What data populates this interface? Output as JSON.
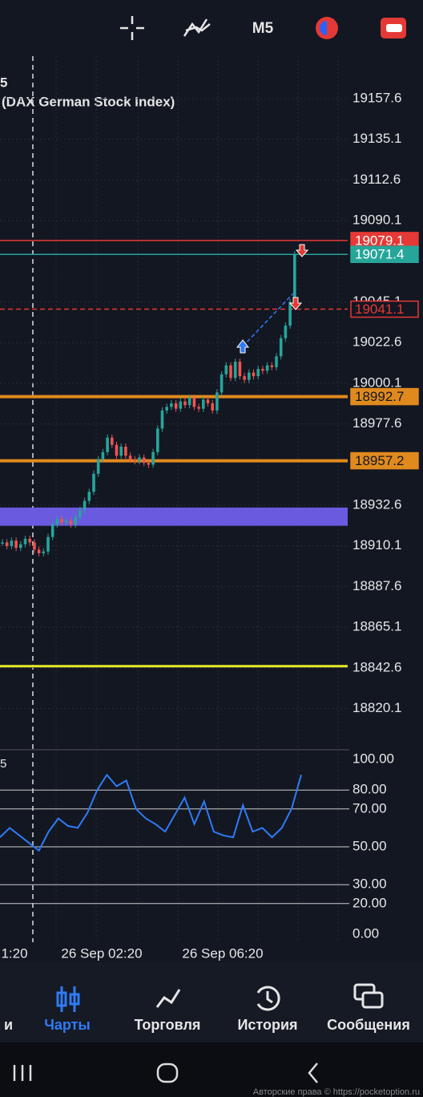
{
  "toolbar": {
    "timeframe": "M5"
  },
  "header": {
    "line1": "5",
    "line2": "(DAX German Stock Index)"
  },
  "price": {
    "ticks": [
      19157.6,
      19135.1,
      19112.6,
      19090.1,
      19045.1,
      19022.6,
      19000.1,
      18977.6,
      18932.6,
      18910.1,
      18887.6,
      18865.1,
      18842.6,
      18820.1
    ],
    "levels": [
      {
        "value": 19079.1,
        "color": "#e53935",
        "style": "solid-label"
      },
      {
        "value": 19071.4,
        "color": "#26a69a",
        "style": "solid-label"
      },
      {
        "value": 19041.1,
        "color": "#e53935",
        "style": "dashed"
      },
      {
        "value": 18992.7,
        "color": "#e08a1e",
        "style": "thick"
      },
      {
        "value": 18957.2,
        "color": "#e08a1e",
        "style": "thick"
      }
    ],
    "band": [
      18931.3,
      18921.2
    ],
    "band_color": "#6a5ae0",
    "support": 18843.5,
    "support_color": "#e8e82a",
    "closes": [
      18912,
      18910,
      18913,
      18909,
      18911,
      18914,
      18912,
      18908,
      18906,
      18907,
      18915,
      18922,
      18925,
      18923,
      18924,
      18922,
      18926,
      18930,
      18935,
      18940,
      18950,
      18958,
      18962,
      18970,
      18966,
      18960,
      18965,
      18960,
      18958,
      18957,
      18959,
      18956,
      18955,
      18962,
      18975,
      18985,
      18987,
      18989,
      18986,
      18990,
      18988,
      18992,
      18987,
      18986,
      18991,
      18989,
      18985,
      18995,
      19005,
      19010,
      19003,
      19012,
      19004,
      19002,
      19006,
      19004,
      19008,
      19007,
      19010,
      19009,
      19015,
      19025,
      19032,
      19045,
      19071.4
    ]
  },
  "rsi": {
    "label": "5",
    "ticks": [
      {
        "value": 100,
        "label": "100.00"
      },
      {
        "value": 80,
        "label": "80.00"
      },
      {
        "value": 70,
        "label": "70.00"
      },
      {
        "value": 50,
        "label": "50.00"
      },
      {
        "value": 30,
        "label": "30.00"
      },
      {
        "value": 20,
        "label": "20.00"
      },
      {
        "value": 0,
        "label": "0.00"
      }
    ],
    "values": [
      55,
      60,
      56,
      52,
      48,
      58,
      65,
      61,
      60,
      68,
      80,
      88,
      82,
      85,
      70,
      65,
      62,
      58,
      67,
      76,
      62,
      74,
      58,
      56,
      55,
      72,
      58,
      60,
      55,
      60,
      70,
      88
    ]
  },
  "time_axis": [
    "1:20",
    "26 Sep 02:20",
    "26 Sep 06:20"
  ],
  "nav": [
    "и",
    "Чарты",
    "Торговля",
    "История",
    "Сообщения"
  ],
  "watermark": "Авторские права © https://pocketoption.ru"
}
